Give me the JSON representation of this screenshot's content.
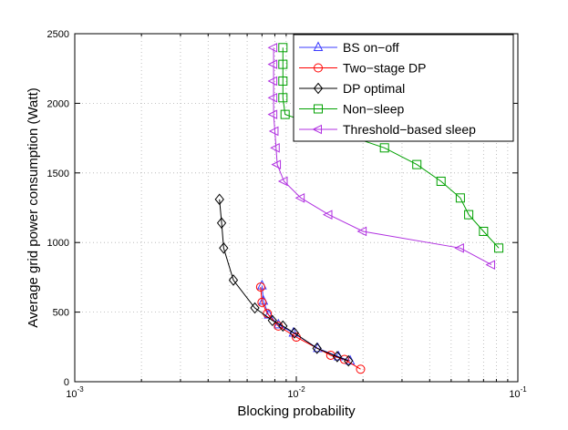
{
  "chart_data": {
    "type": "line",
    "xscale": "log",
    "xlabel": "Blocking probability",
    "ylabel": "Average grid power consumption (Watt)",
    "xlim": [
      0.001,
      0.1
    ],
    "ylim": [
      0,
      2500
    ],
    "grid": true,
    "legend_position": "top-right",
    "x_ticks": [
      {
        "value": 0.001,
        "base": "10",
        "exp": "-3"
      },
      {
        "value": 0.01,
        "base": "10",
        "exp": "-2"
      },
      {
        "value": 0.1,
        "base": "10",
        "exp": "-1"
      }
    ],
    "y_ticks": [
      {
        "value": 0,
        "label": "0"
      },
      {
        "value": 500,
        "label": "500"
      },
      {
        "value": 1000,
        "label": "1000"
      },
      {
        "value": 1500,
        "label": "1500"
      },
      {
        "value": 2000,
        "label": "2000"
      },
      {
        "value": 2500,
        "label": "2500"
      }
    ],
    "series": [
      {
        "name": "BS on−off",
        "color": "#3b3bff",
        "marker": "triangle-up",
        "x": [
          0.007,
          0.0071,
          0.0075,
          0.0083,
          0.0097,
          0.0125,
          0.0155,
          0.0175
        ],
        "y": [
          690,
          580,
          480,
          410,
          350,
          240,
          180,
          150
        ]
      },
      {
        "name": "Two−stage DP",
        "color": "#ff0000",
        "marker": "circle",
        "x": [
          0.0069,
          0.007,
          0.0074,
          0.0083,
          0.01,
          0.0143,
          0.0165,
          0.0195
        ],
        "y": [
          680,
          570,
          490,
          400,
          320,
          190,
          160,
          90
        ]
      },
      {
        "name": "DP optimal",
        "color": "#000000",
        "marker": "diamond",
        "x": [
          0.0045,
          0.0046,
          0.0047,
          0.0052,
          0.0065,
          0.0078,
          0.0087,
          0.0098,
          0.0124,
          0.0153,
          0.0172
        ],
        "y": [
          1310,
          1140,
          960,
          730,
          530,
          440,
          400,
          350,
          240,
          180,
          150
        ]
      },
      {
        "name": "Non−sleep",
        "color": "#00a000",
        "marker": "square",
        "x": [
          0.0087,
          0.0087,
          0.0087,
          0.0087,
          0.0089,
          0.025,
          0.035,
          0.045,
          0.055,
          0.06,
          0.07,
          0.082
        ],
        "y": [
          2400,
          2280,
          2160,
          2040,
          1920,
          1680,
          1560,
          1440,
          1320,
          1200,
          1080,
          960
        ]
      },
      {
        "name": "Threshold−based sleep",
        "color": "#b030e0",
        "marker": "triangle-left",
        "x": [
          0.0079,
          0.0079,
          0.0079,
          0.0079,
          0.0079,
          0.008,
          0.0081,
          0.0082,
          0.0088,
          0.0105,
          0.014,
          0.02,
          0.055,
          0.076
        ],
        "y": [
          2400,
          2280,
          2160,
          2040,
          1920,
          1800,
          1680,
          1560,
          1440,
          1320,
          1200,
          1080,
          960,
          840
        ]
      }
    ]
  }
}
